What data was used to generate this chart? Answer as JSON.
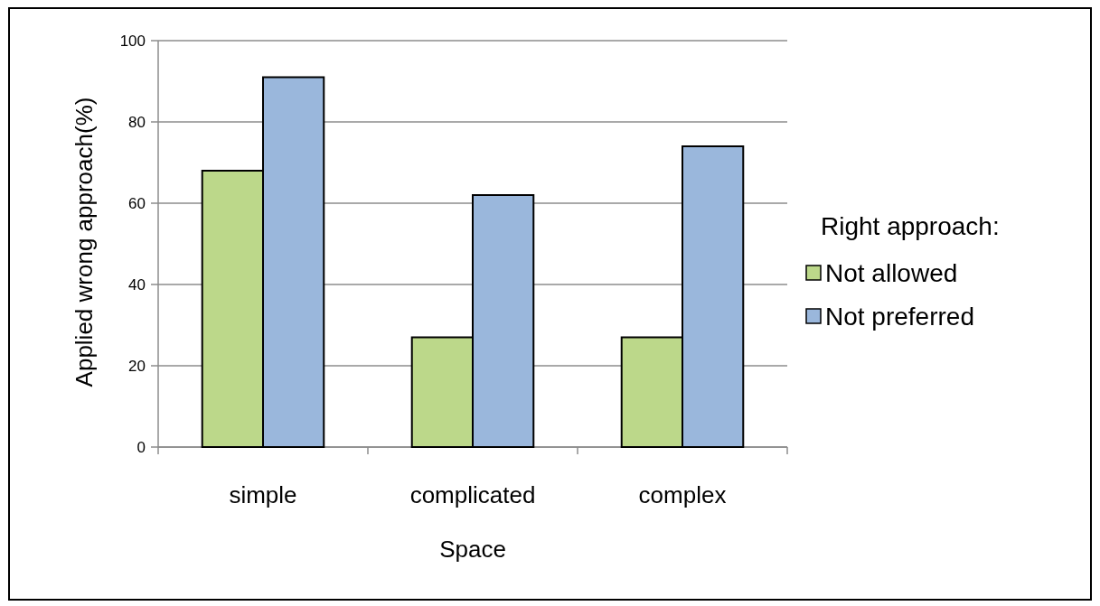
{
  "chart_data": {
    "type": "bar",
    "xlabel": "Space",
    "ylabel": "Applied wrong approach(%)",
    "legend_title": "Right approach:",
    "categories": [
      "simple",
      "complicated",
      "complex"
    ],
    "series": [
      {
        "name": "Not allowed",
        "color": "#bcd88a",
        "values": [
          68,
          27,
          27
        ]
      },
      {
        "name": "Not preferred",
        "color": "#9ab7dc",
        "values": [
          91,
          62,
          74
        ]
      }
    ],
    "ylim": [
      0,
      100
    ],
    "yticks": [
      0,
      20,
      40,
      60,
      80,
      100
    ],
    "grid": "y",
    "legend": "right"
  }
}
